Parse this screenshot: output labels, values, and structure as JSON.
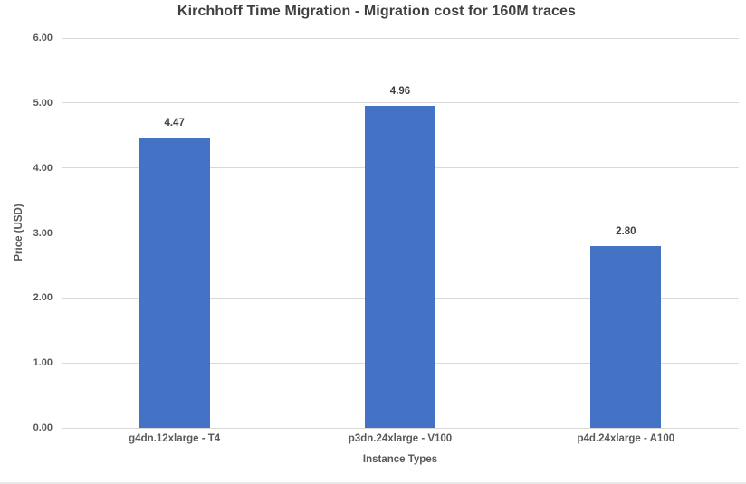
{
  "chart_data": {
    "type": "bar",
    "title": "Kirchhoff Time Migration - Migration cost for 160M traces",
    "xlabel": "Instance Types",
    "ylabel": "Price (USD)",
    "categories": [
      "g4dn.12xlarge - T4",
      "p3dn.24xlarge - V100",
      "p4d.24xlarge - A100"
    ],
    "values": [
      4.47,
      4.96,
      2.8
    ],
    "data_labels": [
      "4.47",
      "4.96",
      "2.80"
    ],
    "ylim": [
      0,
      6
    ],
    "ytick_step": 1,
    "ytick_labels": [
      "0.00",
      "1.00",
      "2.00",
      "3.00",
      "4.00",
      "5.00",
      "6.00"
    ],
    "grid": true,
    "legend": false,
    "colors": {
      "bar": "#4472c4",
      "gridline": "#d9d9d9",
      "title_text": "#404040",
      "axis_text": "#595959",
      "background": "#ffffff"
    }
  }
}
